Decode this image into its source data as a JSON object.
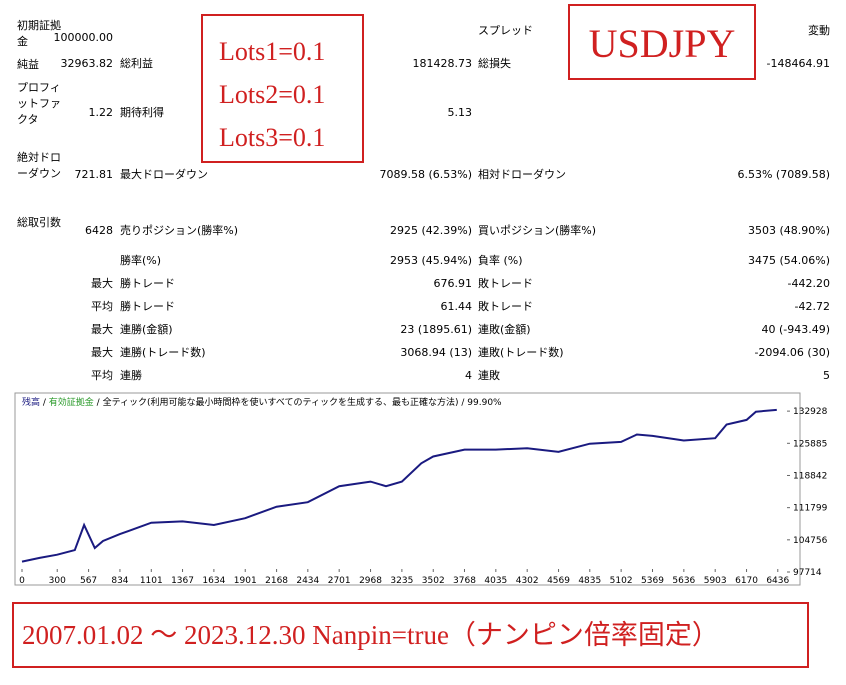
{
  "table": {
    "rows": [
      {
        "label": "初期証拠金",
        "value": "100000.00",
        "label3": "スプレッド",
        "value3": "変動"
      },
      {
        "label": "純益",
        "value": "32963.82",
        "label2": "総利益",
        "value2": "181428.73",
        "label3": "総損失",
        "value3": "-148464.91"
      },
      {
        "label": "プロフィットファクタ",
        "value": "1.22",
        "label2": "期待利得",
        "value2": "5.13"
      },
      {
        "label": "絶対ドローダウン",
        "value": "721.81",
        "label2": "最大ドローダウン",
        "value2": "7089.58 (6.53%)",
        "label3": "相対ドローダウン",
        "value3": "6.53% (7089.58)"
      },
      {
        "label": "総取引数",
        "value": "6428",
        "label2": "売りポジション(勝率%)",
        "value2": "2925 (42.39%)",
        "label3": "買いポジション(勝率%)",
        "value3": "3503 (48.90%)"
      },
      {
        "label2": "勝率(%)",
        "value2": "2953 (45.94%)",
        "label3": "負率 (%)",
        "value3": "3475 (54.06%)"
      },
      {
        "prefix": "最大",
        "label2": "勝トレード",
        "value2": "676.91",
        "label3": "敗トレード",
        "value3": "-442.20"
      },
      {
        "prefix": "平均",
        "label2": "勝トレード",
        "value2": "61.44",
        "label3": "敗トレード",
        "value3": "-42.72"
      },
      {
        "prefix": "最大",
        "label2": "連勝(金額)",
        "value2": "23 (1895.61)",
        "label3": "連敗(金額)",
        "value3": "40 (-943.49)"
      },
      {
        "prefix": "最大",
        "label2": "連勝(トレード数)",
        "value2": "3068.94 (13)",
        "label3": "連敗(トレード数)",
        "value3": "-2094.06 (30)"
      },
      {
        "prefix": "平均",
        "label2": "連勝",
        "value2": "4",
        "label3": "連敗",
        "value3": "5"
      }
    ]
  },
  "annotations": {
    "lots": [
      "Lots1=0.1",
      "Lots2=0.1",
      "Lots3=0.1"
    ],
    "symbol": "USDJPY",
    "period": "2007.01.02 ～ 2023.12.30 Nanpin=true（ナンピン倍率固定）"
  },
  "chart_data": {
    "type": "line",
    "equity_label": "有効証拠金",
    "model": "全ティック(利用可能な最小時間枠を使いすべてのティックを生成する、最も正確な方法)",
    "quality": "99.90%",
    "x": [
      0,
      150,
      300,
      450,
      529,
      620,
      690,
      834,
      1101,
      1367,
      1634,
      1901,
      2168,
      2434,
      2701,
      2968,
      3100,
      3235,
      3400,
      3502,
      3768,
      4035,
      4302,
      4569,
      4835,
      5102,
      5236,
      5369,
      5636,
      5903,
      6000,
      6170,
      6250,
      6428
    ],
    "series": [
      {
        "name": "残高",
        "color": "#1a1a80",
        "values": [
          100000,
          100800,
          101500,
          102500,
          108000,
          102963,
          104500,
          106000,
          108500,
          108800,
          108000,
          109500,
          112000,
          113000,
          116500,
          117500,
          116500,
          117500,
          121500,
          123000,
          124500,
          124500,
          124800,
          124000,
          125800,
          126200,
          127800,
          127500,
          126500,
          127000,
          130000,
          131000,
          132800,
          133200
        ]
      }
    ],
    "xlim": [
      0,
      6540
    ],
    "ylim": [
      97714,
      135800
    ],
    "xticks": [
      0,
      300,
      567,
      834,
      1101,
      1367,
      1634,
      1901,
      2168,
      2434,
      2701,
      2968,
      3235,
      3502,
      3768,
      4035,
      4302,
      4569,
      4835,
      5102,
      5369,
      5636,
      5903,
      6170,
      6436
    ],
    "yticks": [
      97714,
      104756,
      111799,
      118842,
      125885,
      132928
    ]
  }
}
